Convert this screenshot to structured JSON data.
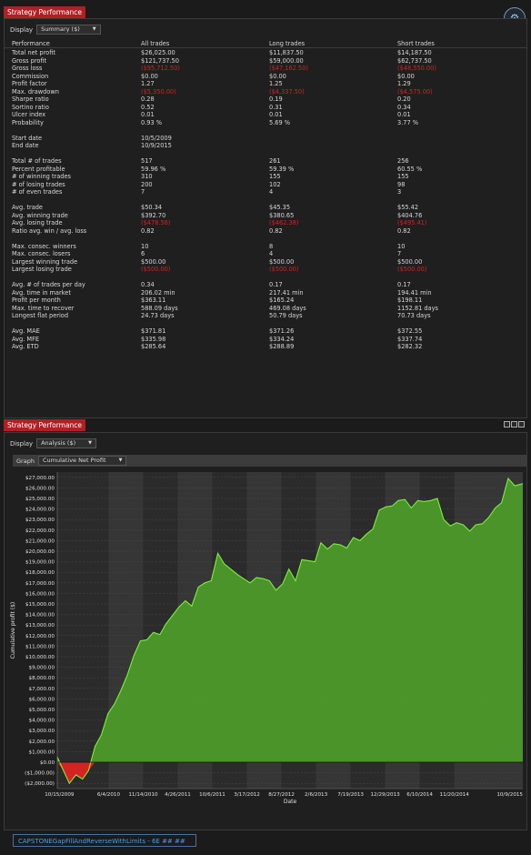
{
  "top_panel": {
    "title": "Strategy Performance",
    "display_label": "Display",
    "display_value": "Summary ($)",
    "headers": [
      "Performance",
      "All trades",
      "Long trades",
      "Short trades"
    ],
    "sections": [
      [
        [
          "Total net profit",
          "$26,025.00",
          "$11,837.50",
          "$14,187.50"
        ],
        [
          "Gross profit",
          "$121,737.50",
          "$59,000.00",
          "$62,737.50"
        ],
        [
          "Gross loss",
          "($95,712.50)",
          "($47,162.50)",
          "($48,550.00)"
        ],
        [
          "Commission",
          "$0.00",
          "$0.00",
          "$0.00"
        ],
        [
          "Profit factor",
          "1.27",
          "1.25",
          "1.29"
        ],
        [
          "Max. drawdown",
          "($5,350.00)",
          "($4,337.50)",
          "($4,575.00)"
        ],
        [
          "Sharpe ratio",
          "0.28",
          "0.19",
          "0.20"
        ],
        [
          "Sortino ratio",
          "0.52",
          "0.31",
          "0.34"
        ],
        [
          "Ulcer index",
          "0.01",
          "0.01",
          "0.01"
        ],
        [
          "Probability",
          "0.93 %",
          "5.69 %",
          "3.77 %"
        ]
      ],
      [
        [
          "Start date",
          "10/5/2009",
          "",
          ""
        ],
        [
          "End date",
          "10/9/2015",
          "",
          ""
        ]
      ],
      [
        [
          "Total # of trades",
          "517",
          "261",
          "256"
        ],
        [
          "Percent profitable",
          "59.96 %",
          "59.39 %",
          "60.55 %"
        ],
        [
          "# of winning trades",
          "310",
          "155",
          "155"
        ],
        [
          "# of losing trades",
          "200",
          "102",
          "98"
        ],
        [
          "# of even trades",
          "7",
          "4",
          "3"
        ]
      ],
      [
        [
          "Avg. trade",
          "$50.34",
          "$45.35",
          "$55.42"
        ],
        [
          "Avg. winning trade",
          "$392.70",
          "$380.65",
          "$404.76"
        ],
        [
          "Avg. losing trade",
          "($478.56)",
          "($462.38)",
          "($495.41)"
        ],
        [
          "Ratio avg. win / avg. loss",
          "0.82",
          "0.82",
          "0.82"
        ]
      ],
      [
        [
          "Max. consec. winners",
          "10",
          "8",
          "10"
        ],
        [
          "Max. consec. losers",
          "6",
          "4",
          "7"
        ],
        [
          "Largest winning trade",
          "$500.00",
          "$500.00",
          "$500.00"
        ],
        [
          "Largest losing trade",
          "($500.00)",
          "($500.00)",
          "($500.00)"
        ]
      ],
      [
        [
          "Avg. # of trades per day",
          "0.34",
          "0.17",
          "0.17"
        ],
        [
          "Avg. time in market",
          "206.02 min",
          "217.41 min",
          "194.41 min"
        ],
        [
          "Profit per month",
          "$363.11",
          "$165.24",
          "$198.11"
        ],
        [
          "Max. time to recover",
          "588.09 days",
          "469.08 days",
          "1152.81 days"
        ],
        [
          "Longest flat period",
          "24.73 days",
          "50.79 days",
          "70.73 days"
        ]
      ],
      [
        [
          "Avg. MAE",
          "$371.81",
          "$371.26",
          "$372.55"
        ],
        [
          "Avg. MFE",
          "$335.98",
          "$334.24",
          "$337.74"
        ],
        [
          "Avg. ETD",
          "$285.64",
          "$288.89",
          "$282.32"
        ]
      ]
    ]
  },
  "bottom_panel": {
    "title": "Strategy Performance",
    "display_label": "Display",
    "display_value": "Analysis ($)",
    "graph_label": "Graph",
    "graph_value": "Cumulative Net Profit"
  },
  "colors": {
    "accent": "#b01f24",
    "area_fill": "#4c9a2a",
    "line": "#7cf03a",
    "negative": "#d42323"
  },
  "footer_tab": "CAPSTONEGapFillAndReverseWithLimits - 6E ## ##",
  "chart_data": {
    "type": "area",
    "title": "",
    "xlabel": "Date",
    "ylabel": "Cumulative profit ($)",
    "ylim": [
      -2500,
      27500
    ],
    "y_ticks": [
      "$27,000.00",
      "$26,000.00",
      "$25,000.00",
      "$24,000.00",
      "$23,000.00",
      "$22,000.00",
      "$21,000.00",
      "$20,000.00",
      "$19,000.00",
      "$18,000.00",
      "$17,000.00",
      "$16,000.00",
      "$15,000.00",
      "$14,000.00",
      "$13,000.00",
      "$12,000.00",
      "$11,000.00",
      "$10,000.00",
      "$9,000.00",
      "$8,000.00",
      "$7,000.00",
      "$6,000.00",
      "$5,000.00",
      "$4,000.00",
      "$3,000.00",
      "$2,000.00",
      "$1,000.00",
      "$0.00",
      "($1,000.00)",
      "($2,000.00)"
    ],
    "x_ticks": [
      "10/15/2009",
      "6/4/2010",
      "11/14/2010",
      "4/26/2011",
      "10/6/2011",
      "3/17/2012",
      "8/27/2012",
      "2/6/2013",
      "7/19/2013",
      "12/29/2013",
      "6/10/2014",
      "11/20/2014",
      "10/9/2015"
    ],
    "x": [
      "10/5/2009",
      "11/1/2009",
      "12/1/2009",
      "1/1/2010",
      "2/1/2010",
      "3/1/2010",
      "4/1/2010",
      "5/1/2010",
      "6/1/2010",
      "7/1/2010",
      "8/1/2010",
      "9/1/2010",
      "10/1/2010",
      "11/1/2010",
      "12/1/2010",
      "1/1/2011",
      "2/1/2011",
      "3/1/2011",
      "4/1/2011",
      "5/1/2011",
      "6/1/2011",
      "7/1/2011",
      "8/1/2011",
      "9/1/2011",
      "10/1/2011",
      "11/1/2011",
      "12/1/2011",
      "1/1/2012",
      "2/1/2012",
      "3/1/2012",
      "4/1/2012",
      "5/1/2012",
      "6/1/2012",
      "7/1/2012",
      "8/1/2012",
      "9/1/2012",
      "10/1/2012",
      "11/1/2012",
      "12/1/2012",
      "1/1/2013",
      "2/1/2013",
      "3/1/2013",
      "4/1/2013",
      "5/1/2013",
      "6/1/2013",
      "7/1/2013",
      "8/1/2013",
      "9/1/2013",
      "10/1/2013",
      "11/1/2013",
      "12/1/2013",
      "1/1/2014",
      "2/1/2014",
      "3/1/2014",
      "4/1/2014",
      "5/1/2014",
      "6/1/2014",
      "7/1/2014",
      "8/1/2014",
      "9/1/2014",
      "10/1/2014",
      "11/1/2014",
      "12/1/2014",
      "1/1/2015",
      "2/1/2015",
      "3/1/2015",
      "4/1/2015",
      "5/1/2015",
      "6/1/2015",
      "7/1/2015",
      "8/1/2015",
      "9/1/2015",
      "10/9/2015"
    ],
    "values": [
      500,
      -700,
      -2000,
      -1200,
      -1600,
      -800,
      1500,
      2600,
      4600,
      5500,
      6800,
      8300,
      10100,
      11500,
      11600,
      12300,
      12100,
      13100,
      13900,
      14700,
      15300,
      14800,
      16600,
      17000,
      17200,
      19800,
      18800,
      18300,
      17800,
      17400,
      17000,
      17500,
      17400,
      17200,
      16300,
      16900,
      18300,
      17200,
      19200,
      19100,
      19000,
      20800,
      20200,
      20700,
      20600,
      20300,
      21300,
      21000,
      21600,
      22100,
      23900,
      24200,
      24300,
      24800,
      24900,
      24100,
      24800,
      24700,
      24800,
      25000,
      23000,
      22400,
      22700,
      22500,
      21900,
      22500,
      22600,
      23200,
      24100,
      24600,
      26900,
      26200,
      26400
    ],
    "negative_color": "#d42323"
  }
}
